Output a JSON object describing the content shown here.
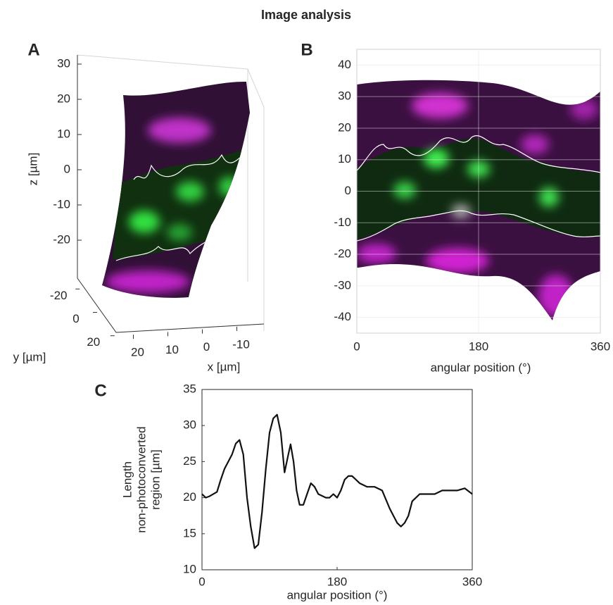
{
  "title": "Image analysis",
  "chart_data": [
    {
      "type": "surface3d",
      "panel": "A",
      "xlabel": "x [µm]",
      "ylabel": "y [µm]",
      "zlabel": "z [µm]",
      "xlim": [
        25,
        -15
      ],
      "ylim": [
        -25,
        25
      ],
      "zlim": [
        -30,
        35
      ],
      "xticks": [
        20,
        10,
        0,
        -10
      ],
      "yticks": [
        -20,
        0,
        20
      ],
      "zticks": [
        30,
        20,
        10,
        0,
        -10,
        -20
      ]
    },
    {
      "type": "image",
      "panel": "B",
      "xlabel": "angular position (°)",
      "xlim": [
        0,
        360
      ],
      "ylim": [
        -45,
        45
      ],
      "xticks": [
        0,
        180,
        360
      ],
      "yticks": [
        -40,
        -30,
        -20,
        -10,
        0,
        10,
        20,
        30,
        40
      ],
      "grid": true
    },
    {
      "type": "line",
      "panel": "C",
      "xlabel": "angular position (°)",
      "ylabel": [
        "Length",
        "non-photoconverted",
        "region [µm]"
      ],
      "xlim": [
        0,
        360
      ],
      "ylim": [
        10,
        35
      ],
      "xticks": [
        0,
        180,
        360
      ],
      "yticks": [
        10,
        15,
        20,
        25,
        30,
        35
      ],
      "color": "#111111",
      "x": [
        0,
        5,
        10,
        20,
        25,
        30,
        40,
        45,
        50,
        55,
        60,
        65,
        70,
        75,
        80,
        85,
        90,
        95,
        100,
        105,
        110,
        115,
        118,
        122,
        126,
        130,
        135,
        140,
        145,
        150,
        155,
        165,
        170,
        175,
        180,
        185,
        190,
        195,
        200,
        205,
        210,
        220,
        230,
        240,
        250,
        255,
        260,
        265,
        270,
        275,
        280,
        290,
        300,
        310,
        320,
        330,
        340,
        350,
        360
      ],
      "values": [
        20.5,
        20,
        20.2,
        20.8,
        22.5,
        24,
        26,
        27.5,
        28,
        26,
        20,
        16,
        13,
        13.5,
        18,
        24,
        29,
        31,
        31.5,
        29,
        23.5,
        26,
        27.4,
        25,
        21,
        19,
        19,
        20.5,
        22,
        21.5,
        20.5,
        20,
        20,
        20.5,
        20,
        21,
        22.5,
        23,
        23,
        22.5,
        22,
        21.5,
        21.5,
        21,
        18.5,
        17.5,
        16.5,
        16,
        16.5,
        17.5,
        19.5,
        20.5,
        20.5,
        20.5,
        21,
        21,
        21,
        21.3,
        20.5
      ]
    }
  ]
}
